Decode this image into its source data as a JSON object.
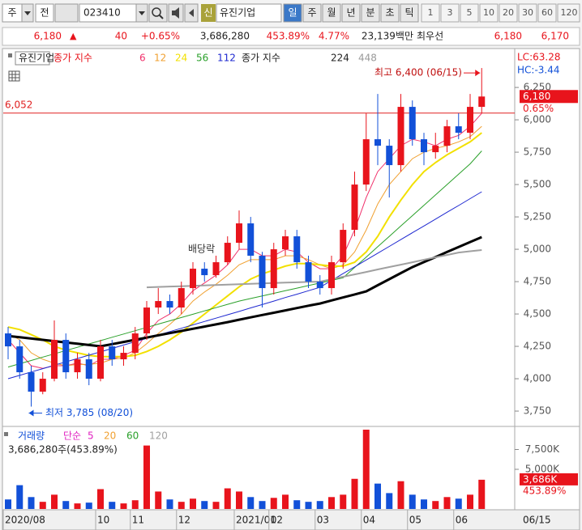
{
  "toolbar": {
    "market": "주",
    "mode": "전",
    "code": "023410",
    "badge": "신",
    "name": "유진기업",
    "periods": [
      "일",
      "주",
      "월",
      "년",
      "분",
      "초",
      "틱"
    ],
    "intervals": [
      "1",
      "3",
      "5",
      "10",
      "20",
      "30",
      "60",
      "120"
    ]
  },
  "quote": {
    "price": "6,180",
    "arrow": "▲",
    "change": "40",
    "change_pct": "+0.65%",
    "volume": "3,686,280",
    "volume_pct": "453.89%",
    "turnover": "4.77%",
    "amount": "23,139백만",
    "best_label": "최우선",
    "ask": "6,180",
    "bid": "6,170"
  },
  "chart_data": {
    "type": "candlestick",
    "title": "유진기업",
    "ma_label": "종가 지수",
    "lc": "LC:63.28",
    "hc": "HC:-3.44",
    "last_price": {
      "value": 6180,
      "label": "6,180"
    },
    "last_change": "0.65%",
    "last_date": "06/15",
    "categories": [
      "2020/08",
      null,
      null,
      null,
      null,
      null,
      null,
      null,
      "10",
      null,
      null,
      "11",
      null,
      null,
      null,
      "12",
      null,
      null,
      null,
      null,
      "2021/01",
      null,
      null,
      "02",
      null,
      null,
      null,
      "03",
      null,
      null,
      null,
      "04",
      null,
      null,
      null,
      "05",
      null,
      null,
      null,
      "06",
      null,
      null
    ],
    "open": [
      4350,
      4250,
      4050,
      3900,
      4000,
      4300,
      4050,
      4150,
      4000,
      4250,
      4150,
      4200,
      4350,
      4550,
      4600,
      4550,
      4700,
      4850,
      4800,
      4900,
      5050,
      5200,
      4950,
      4700,
      5000,
      5100,
      4900,
      4750,
      4700,
      4900,
      5150,
      5500,
      5850,
      5800,
      5650,
      6100,
      5850,
      5750,
      5800,
      5950,
      5900,
      6100
    ],
    "high": [
      4400,
      4300,
      4100,
      4050,
      4450,
      4350,
      4200,
      4200,
      4300,
      4300,
      4250,
      4400,
      4600,
      4700,
      4650,
      4750,
      4900,
      4900,
      4950,
      5100,
      5300,
      5250,
      4980,
      5050,
      5150,
      5150,
      4950,
      4800,
      4950,
      5200,
      5600,
      6050,
      6200,
      5850,
      6200,
      6150,
      5900,
      5900,
      6000,
      6050,
      6200,
      6400
    ],
    "low": [
      4150,
      4000,
      3785,
      3880,
      3980,
      4000,
      4000,
      3950,
      3980,
      4100,
      4100,
      4150,
      4300,
      4500,
      4500,
      4500,
      4650,
      4750,
      4780,
      4880,
      5000,
      4900,
      4550,
      4650,
      4950,
      4850,
      4700,
      4650,
      4650,
      4850,
      5100,
      5450,
      5650,
      5400,
      5600,
      5800,
      5650,
      5700,
      5750,
      5850,
      5850,
      6050
    ],
    "close": [
      4250,
      4050,
      3900,
      4000,
      4300,
      4050,
      4150,
      4000,
      4250,
      4150,
      4200,
      4350,
      4550,
      4600,
      4550,
      4700,
      4850,
      4800,
      4900,
      5050,
      5200,
      4950,
      4700,
      5000,
      5100,
      4900,
      4750,
      4700,
      4900,
      5150,
      5500,
      5850,
      5800,
      5650,
      6100,
      5850,
      5750,
      5800,
      5950,
      5900,
      6100,
      6180
    ],
    "up_color": "#e8141c",
    "down_color": "#1250d8",
    "series": [
      {
        "name": "6",
        "color": "#f0306a",
        "width": 1,
        "group": 1,
        "values": [
          4300,
          4200,
          4100,
          4080,
          4100,
          4100,
          4120,
          4100,
          4150,
          4150,
          4180,
          4220,
          4350,
          4450,
          4500,
          4580,
          4680,
          4740,
          4800,
          4880,
          5000,
          5000,
          4950,
          4950,
          5000,
          4980,
          4900,
          4850,
          4850,
          4950,
          5150,
          5400,
          5600,
          5700,
          5800,
          5850,
          5830,
          5800,
          5850,
          5880,
          5950,
          6050
        ]
      },
      {
        "name": "12",
        "color": "#f0a030",
        "width": 1,
        "group": 1,
        "values": [
          4350,
          4300,
          4200,
          4150,
          4120,
          4100,
          4110,
          4110,
          4120,
          4150,
          4160,
          4200,
          4270,
          4350,
          4420,
          4500,
          4600,
          4670,
          4730,
          4800,
          4880,
          4920,
          4920,
          4920,
          4950,
          4950,
          4920,
          4880,
          4850,
          4880,
          4980,
          5150,
          5350,
          5500,
          5600,
          5700,
          5750,
          5780,
          5800,
          5830,
          5870,
          5950
        ]
      },
      {
        "name": "24",
        "color": "#f2e000",
        "width": 2,
        "group": 1,
        "values": [
          4400,
          4380,
          4340,
          4300,
          4250,
          4220,
          4200,
          4180,
          4170,
          4170,
          4170,
          4180,
          4210,
          4250,
          4300,
          4360,
          4430,
          4500,
          4570,
          4640,
          4710,
          4770,
          4810,
          4840,
          4870,
          4890,
          4890,
          4880,
          4870,
          4870,
          4900,
          4980,
          5100,
          5250,
          5380,
          5500,
          5600,
          5670,
          5730,
          5780,
          5830,
          5900
        ]
      },
      {
        "name": "56",
        "color": "#2aa02a",
        "width": 1,
        "group": 1,
        "values": [
          4090,
          4116,
          4141,
          4167,
          4192,
          4218,
          4243,
          4269,
          4294,
          4320,
          4345,
          4371,
          4396,
          4422,
          4447,
          4473,
          4498,
          4524,
          4549,
          4575,
          4600,
          4620,
          4640,
          4660,
          4680,
          4700,
          4720,
          4740,
          4760,
          4780,
          4860,
          4940,
          5020,
          5100,
          5180,
          5260,
          5340,
          5420,
          5500,
          5580,
          5660,
          5760
        ]
      },
      {
        "name": "112",
        "color": "#1e28d0",
        "width": 1,
        "group": 1,
        "values": [
          4000,
          4026,
          4052,
          4078,
          4104,
          4130,
          4156,
          4182,
          4208,
          4234,
          4260,
          4286,
          4312,
          4338,
          4364,
          4390,
          4416,
          4442,
          4468,
          4494,
          4520,
          4547,
          4573,
          4600,
          4627,
          4653,
          4680,
          4706,
          4759,
          4812,
          4864,
          4917,
          4970,
          5022,
          5075,
          5128,
          5180,
          5233,
          5286,
          5338,
          5391,
          5444
        ]
      },
      {
        "name": "224",
        "color": "#000000",
        "width": 3,
        "group": 2,
        "values": [
          4330,
          4320,
          4310,
          4300,
          4290,
          4280,
          4270,
          4260,
          4250,
          4267,
          4284,
          4301,
          4318,
          4335,
          4352,
          4369,
          4386,
          4403,
          4420,
          4437,
          4456,
          4474,
          4492,
          4510,
          4528,
          4546,
          4564,
          4581,
          4605,
          4628,
          4651,
          4675,
          4722,
          4769,
          4816,
          4862,
          4901,
          4940,
          4979,
          5018,
          5056,
          5094
        ]
      },
      {
        "name": "448",
        "color": "#a0a0a0",
        "width": 2,
        "group": 2,
        "values": [
          null,
          null,
          null,
          null,
          null,
          null,
          null,
          null,
          null,
          null,
          null,
          null,
          4706,
          4709,
          4712,
          4715,
          4718,
          4721,
          4724,
          4727,
          4730,
          4733,
          4736,
          4739,
          4742,
          4745,
          4748,
          4750,
          4769,
          4788,
          4806,
          4825,
          4844,
          4863,
          4881,
          4900,
          4919,
          4938,
          4956,
          4975,
          4985,
          4994
        ]
      }
    ],
    "ylim": [
      3644,
      6538
    ],
    "yticks": [
      {
        "value": 3750,
        "label": "3,750"
      },
      {
        "value": 4000,
        "label": "4,000"
      },
      {
        "value": 4250,
        "label": "4,250"
      },
      {
        "value": 4500,
        "label": "4,500"
      },
      {
        "value": 4750,
        "label": "4,750"
      },
      {
        "value": 5000,
        "label": "5,000"
      },
      {
        "value": 5250,
        "label": "5,250"
      },
      {
        "value": 5500,
        "label": "5,500"
      },
      {
        "value": 5750,
        "label": "5,750"
      },
      {
        "value": 6000,
        "label": "6,000"
      },
      {
        "value": 6250,
        "label": "6,250"
      }
    ],
    "reference_line": {
      "value": 6052,
      "label": "6,052",
      "color": "#e02020"
    },
    "max_note": {
      "value": 6400,
      "label": "최고 6,400 (06/15)"
    },
    "min_note": {
      "value": 3785,
      "label": "최저 3,785 (08/20)"
    },
    "event_note": "배당락",
    "volume": {
      "title": "거래량",
      "ma_label": "단순",
      "ma_names": [
        "5",
        "20",
        "60",
        "120"
      ],
      "ma_colors": [
        "#e020c0",
        "#f0a030",
        "#2aa02a",
        "#a0a0a0"
      ],
      "summary": "3,686,280주(453.89%)",
      "last": {
        "value": 3686,
        "label": "3,686K"
      },
      "last_pct": "453.89%",
      "values": [
        1200,
        3000,
        1500,
        900,
        1800,
        1000,
        700,
        800,
        2500,
        900,
        700,
        1100,
        8000,
        2200,
        1200,
        900,
        1300,
        1000,
        900,
        2600,
        2200,
        1500,
        1000,
        1400,
        1800,
        1100,
        900,
        1000,
        1500,
        1800,
        3800,
        10000,
        3200,
        2000,
        3500,
        1800,
        1200,
        1000,
        1500,
        1300,
        1800,
        3686
      ],
      "ylim": [
        0,
        10000
      ],
      "yticks": [
        {
          "value": 5000,
          "label": "5,000K"
        },
        {
          "value": 7500,
          "label": "7,500K"
        }
      ]
    }
  }
}
